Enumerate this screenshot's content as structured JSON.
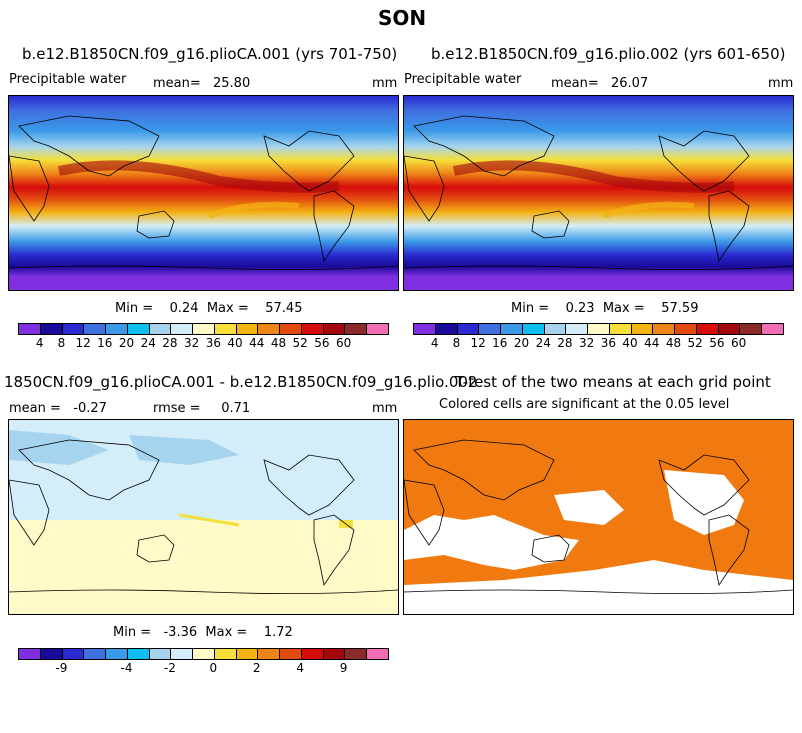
{
  "figure_title": "SON",
  "panels": {
    "top_left": {
      "title": "b.e12.B1850CN.f09_g16.plioCA.001 (yrs 701-750)",
      "left_label": "Precipitable water",
      "mean_label": "mean=",
      "mean_value": "25.80",
      "units": "mm",
      "minmax_text": "Min =    0.24  Max =    57.45"
    },
    "top_right": {
      "title": "b.e12.B1850CN.f09_g16.plio.002 (yrs 601-650)",
      "left_label": "Precipitable water",
      "mean_label": "mean=",
      "mean_value": "26.07",
      "units": "mm",
      "minmax_text": "Min =    0.23  Max =    57.59"
    },
    "bottom_left": {
      "title": "1850CN.f09_g16.plioCA.001 - b.e12.B1850CN.f09_g16.plio.002",
      "mean_text": "mean =   -0.27",
      "rmse_text": "rmse =     0.71",
      "units": "mm",
      "minmax_text": "Min =   -3.36  Max =    1.72"
    },
    "bottom_right": {
      "title": "T-test of the two means at each grid point",
      "subtitle": "Colored cells are significant at the 0.05 level"
    }
  },
  "colors": {
    "pw_scale": [
      "#7f2fe0",
      "#1a0a99",
      "#2a2ad0",
      "#3f72e0",
      "#3a9ae8",
      "#0fbfef",
      "#a6d4ef",
      "#d3eef8",
      "#fffac8",
      "#f6df3a",
      "#f3b313",
      "#ef8518",
      "#e34a10",
      "#d60c0b",
      "#a4060d",
      "#8c2a2a",
      "#f06fb4"
    ],
    "diff_scale": [
      "#7f2fe0",
      "#1a0a99",
      "#2a2ad0",
      "#3f72e0",
      "#3a9ae8",
      "#0fbfef",
      "#a6d4ef",
      "#d3eef8",
      "#fffac8",
      "#f6df3a",
      "#f3b313",
      "#ef8518",
      "#e34a10",
      "#d60c0b",
      "#a4060d",
      "#8c2a2a",
      "#f06fb4"
    ],
    "ttest_fill": "#f07a0f"
  },
  "chart_data": [
    {
      "type": "heatmap",
      "title": "b.e12.B1850CN.f09_g16.plioCA.001 (yrs 701-750)",
      "variable": "Precipitable water",
      "units": "mm",
      "mean": 25.8,
      "min": 0.24,
      "max": 57.45,
      "colorbar_levels": [
        4,
        8,
        12,
        16,
        20,
        24,
        28,
        32,
        36,
        40,
        44,
        48,
        52,
        56,
        60
      ],
      "colorbar_tick_labels": [
        "4",
        "8",
        "12",
        "16",
        "20",
        "24",
        "28",
        "32",
        "36",
        "40",
        "44",
        "48",
        "52",
        "56",
        "60"
      ]
    },
    {
      "type": "heatmap",
      "title": "b.e12.B1850CN.f09_g16.plio.002 (yrs 601-650)",
      "variable": "Precipitable water",
      "units": "mm",
      "mean": 26.07,
      "min": 0.23,
      "max": 57.59,
      "colorbar_levels": [
        4,
        8,
        12,
        16,
        20,
        24,
        28,
        32,
        36,
        40,
        44,
        48,
        52,
        56,
        60
      ],
      "colorbar_tick_labels": [
        "4",
        "8",
        "12",
        "16",
        "20",
        "24",
        "28",
        "32",
        "36",
        "40",
        "44",
        "48",
        "52",
        "56",
        "60"
      ]
    },
    {
      "type": "heatmap",
      "title": "1850CN.f09_g16.plioCA.001 - b.e12.B1850CN.f09_g16.plio.002",
      "units": "mm",
      "mean": -0.27,
      "rmse": 0.71,
      "min": -3.36,
      "max": 1.72,
      "colorbar_tick_labels": [
        "-9",
        "-4",
        "-2",
        "0",
        "2",
        "4",
        "9"
      ]
    },
    {
      "type": "heatmap",
      "title": "T-test of the two means at each grid point",
      "subtitle": "Colored cells are significant at the 0.05 level"
    }
  ]
}
